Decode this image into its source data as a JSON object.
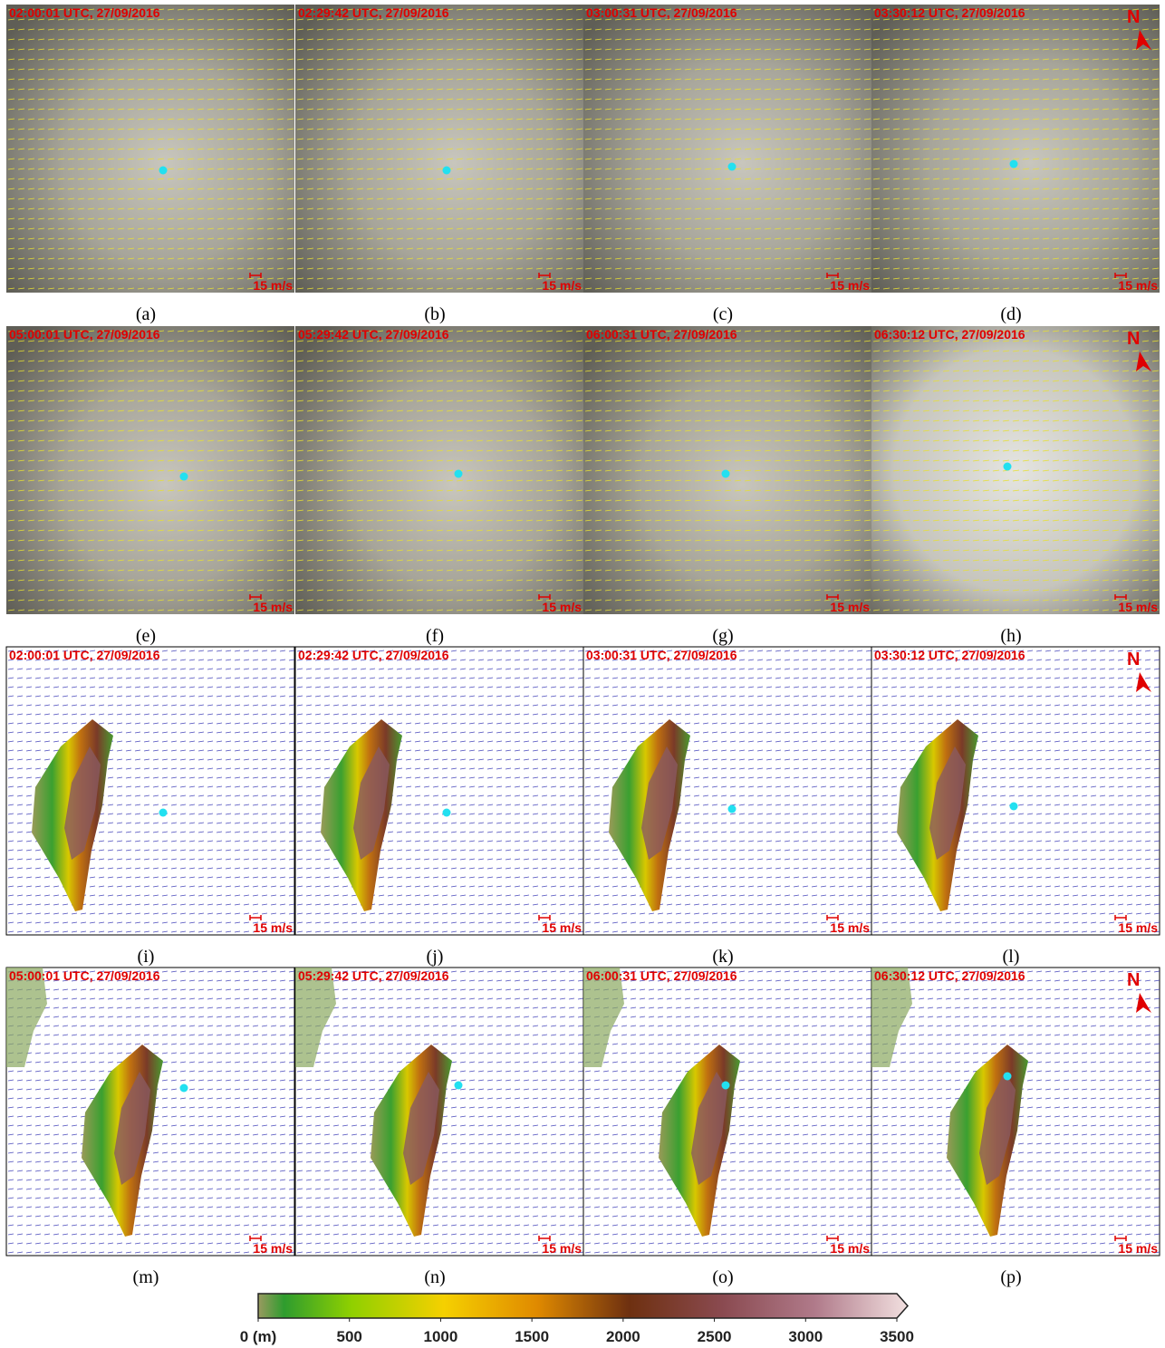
{
  "panels": [
    {
      "timestamp": "02:00:01 UTC, 27/09/2016",
      "label": "(a)",
      "scale": "15 m/s"
    },
    {
      "timestamp": "02:29:42 UTC, 27/09/2016",
      "label": "(b)",
      "scale": "15 m/s"
    },
    {
      "timestamp": "03:00:31 UTC, 27/09/2016",
      "label": "(c)",
      "scale": "15 m/s"
    },
    {
      "timestamp": "03:30:12 UTC, 27/09/2016",
      "label": "(d)",
      "scale": "15 m/s"
    },
    {
      "timestamp": "05:00:01 UTC, 27/09/2016",
      "label": "(e)",
      "scale": "15 m/s"
    },
    {
      "timestamp": "05:29:42 UTC, 27/09/2016",
      "label": "(f)",
      "scale": "15 m/s"
    },
    {
      "timestamp": "06:00:31 UTC, 27/09/2016",
      "label": "(g)",
      "scale": "15 m/s"
    },
    {
      "timestamp": "06:30:12 UTC, 27/09/2016",
      "label": "(h)",
      "scale": "15 m/s"
    },
    {
      "timestamp": "02:00:01 UTC, 27/09/2016",
      "label": "(i)",
      "scale": "15 m/s"
    },
    {
      "timestamp": "02:29:42 UTC, 27/09/2016",
      "label": "(j)",
      "scale": "15 m/s"
    },
    {
      "timestamp": "03:00:31 UTC, 27/09/2016",
      "label": "(k)",
      "scale": "15 m/s"
    },
    {
      "timestamp": "03:30:12 UTC, 27/09/2016",
      "label": "(l)",
      "scale": "15 m/s"
    },
    {
      "timestamp": "05:00:01 UTC, 27/09/2016",
      "label": "(m)",
      "scale": "15 m/s"
    },
    {
      "timestamp": "05:29:42 UTC, 27/09/2016",
      "label": "(n)",
      "scale": "15 m/s"
    },
    {
      "timestamp": "06:00:31 UTC, 27/09/2016",
      "label": "(o)",
      "scale": "15 m/s"
    },
    {
      "timestamp": "06:30:12 UTC, 27/09/2016",
      "label": "(p)",
      "scale": "15 m/s"
    }
  ],
  "north": "N",
  "colorbar": {
    "lim": [
      0,
      3500
    ],
    "ticks": [
      {
        "value": 0,
        "label": "0 (m)"
      },
      500,
      1000,
      1500,
      2000,
      2500,
      3000,
      3500
    ]
  }
}
